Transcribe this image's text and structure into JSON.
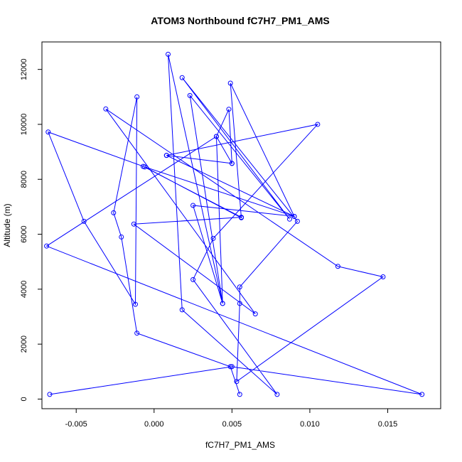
{
  "chart_data": {
    "type": "line",
    "title": "ATOM3 Northbound fC7H7_PM1_AMS",
    "xlabel": "fC7H7_PM1_AMS",
    "ylabel": "Altitude (m)",
    "xlim": [
      -0.0072,
      0.0184
    ],
    "ylim": [
      -350,
      13000
    ],
    "xticks": [
      -0.005,
      0.0,
      0.005,
      0.01,
      0.015
    ],
    "xtick_labels": [
      "-0.005",
      "0.000",
      "0.005",
      "0.010",
      "0.015"
    ],
    "yticks": [
      0,
      2000,
      4000,
      6000,
      8000,
      10000,
      12000
    ],
    "ytick_labels": [
      "0",
      "2000",
      "4000",
      "6000",
      "8000",
      "10000",
      "12000"
    ],
    "grid": false,
    "series_color": "#0000ff",
    "series": [
      {
        "points": [
          [
            0.0055,
            170
          ],
          [
            0.0049,
            1180
          ],
          [
            -0.0011,
            2400
          ],
          [
            -0.0021,
            5900
          ],
          [
            -0.0026,
            6780
          ],
          [
            -0.0011,
            11000
          ],
          [
            -0.0012,
            3450
          ],
          [
            -0.0045,
            6470
          ],
          [
            -0.0068,
            9720
          ],
          [
            -0.0007,
            8470
          ],
          [
            0.0056,
            6620
          ],
          [
            -0.0013,
            6370
          ],
          [
            0.0065,
            3100
          ],
          [
            -0.0031,
            10560
          ],
          [
            0.0118,
            4830
          ],
          [
            0.0147,
            4450
          ],
          [
            0.0053,
            640
          ],
          [
            0.0055,
            3480
          ],
          [
            0.0055,
            4080
          ],
          [
            0.0092,
            6470
          ],
          [
            0.0018,
            11700
          ],
          [
            0.0087,
            6550
          ],
          [
            0.0023,
            11050
          ],
          [
            0.0044,
            3480
          ],
          [
            0.0009,
            12550
          ],
          [
            0.0018,
            3250
          ],
          [
            0.0079,
            170
          ],
          [
            0.0025,
            4350
          ],
          [
            0.0038,
            5850
          ],
          [
            0.0105,
            10000
          ],
          [
            0.0008,
            8870
          ],
          [
            0.005,
            8580
          ],
          [
            0.004,
            9560
          ],
          [
            0.0048,
            10550
          ],
          [
            0.005,
            8580
          ],
          [
            0.0008,
            8870
          ],
          [
            0.009,
            6650
          ],
          [
            -0.0006,
            8450
          ],
          [
            0.0056,
            6600
          ],
          [
            0.0049,
            11500
          ],
          [
            0.009,
            6650
          ],
          [
            0.0025,
            7050
          ],
          [
            0.0044,
            3480
          ],
          [
            0.004,
            9560
          ],
          [
            -0.0069,
            5570
          ],
          [
            0.0172,
            170
          ],
          [
            0.005,
            1180
          ],
          [
            -0.0067,
            170
          ]
        ]
      }
    ]
  }
}
